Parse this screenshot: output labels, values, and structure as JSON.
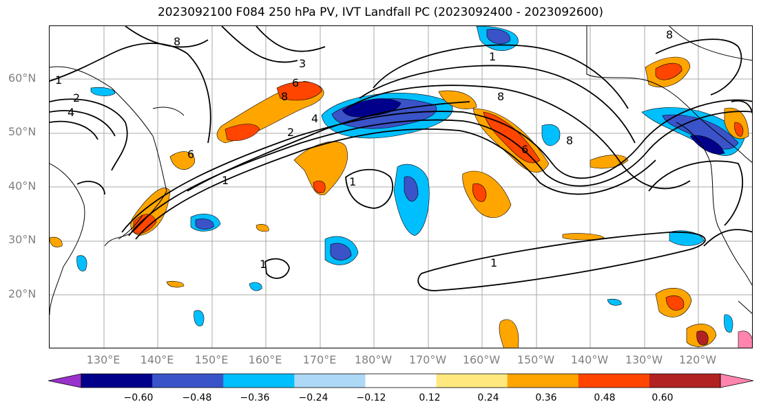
{
  "title": "2023092100 F084 250 hPa PV, IVT Landfall PC (2023092400 - 2023092600)",
  "lat_labels": [
    "60°N",
    "50°N",
    "40°N",
    "30°N",
    "20°N"
  ],
  "lon_labels": [
    "130°E",
    "140°E",
    "150°E",
    "160°E",
    "170°E",
    "180°W",
    "170°W",
    "160°W",
    "150°W",
    "140°W",
    "130°W",
    "120°W"
  ],
  "colorbar": {
    "ticks": [
      "−0.60",
      "−0.48",
      "−0.36",
      "−0.24",
      "−0.12",
      "0.12",
      "0.24",
      "0.36",
      "0.48",
      "0.60"
    ],
    "colors": [
      "#9932cc",
      "#00008b",
      "#3a53c8",
      "#00bfff",
      "#add8f6",
      "#ffffff",
      "#ffe97f",
      "#ffa500",
      "#ff4500",
      "#b22222",
      "#ff85ae"
    ]
  },
  "contour_labels": [
    "1",
    "2",
    "4",
    "8",
    "6",
    "3",
    "2",
    "1",
    "8",
    "1",
    "4",
    "6",
    "8",
    "8",
    "6",
    "8",
    "1",
    "1",
    "1"
  ]
}
